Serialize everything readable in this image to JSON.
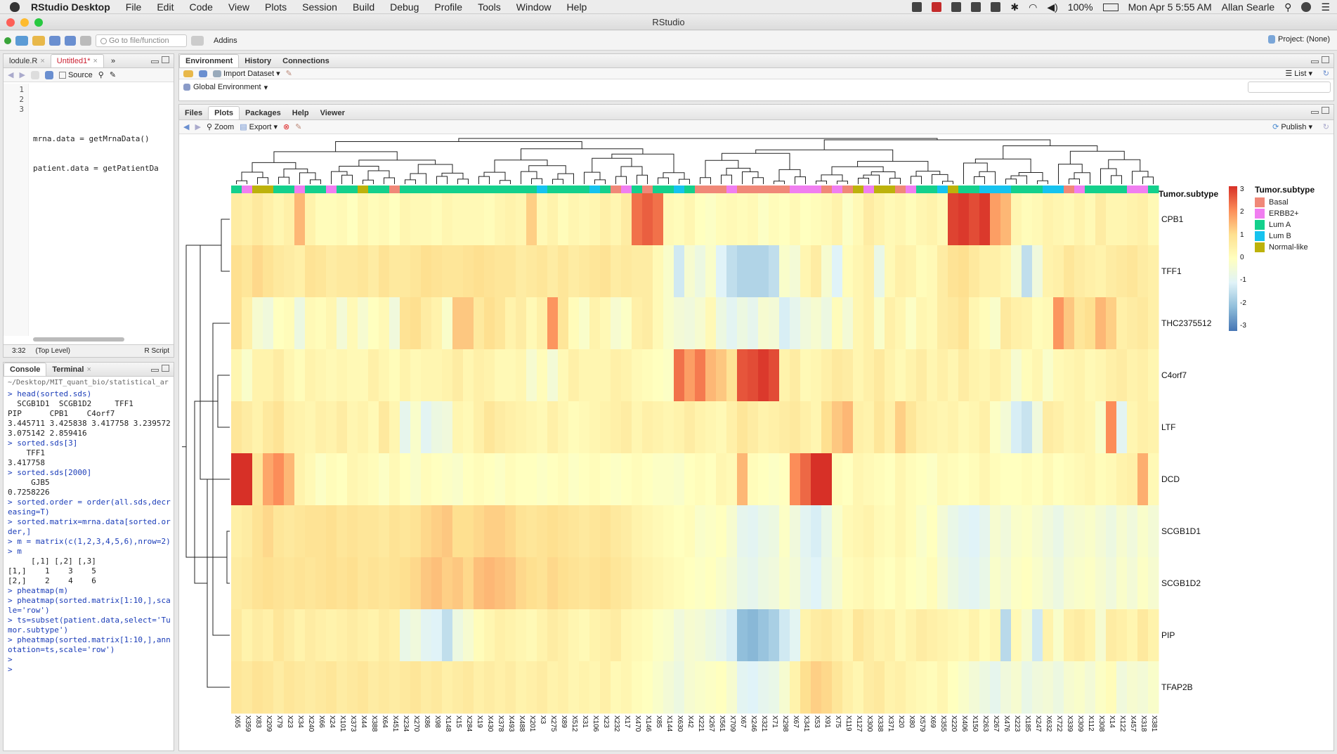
{
  "menubar": {
    "app": "RStudio Desktop",
    "items": [
      "File",
      "Edit",
      "Code",
      "View",
      "Plots",
      "Session",
      "Build",
      "Debug",
      "Profile",
      "Tools",
      "Window",
      "Help"
    ],
    "battery": "100%",
    "clock": "Mon Apr 5  5:55 AM",
    "user": "Allan Searle"
  },
  "window": {
    "title": "RStudio"
  },
  "toolbar": {
    "goto_placeholder": "Go to file/function",
    "addins": "Addins",
    "project": "Project: (None)"
  },
  "editor": {
    "tabs": [
      {
        "label": "lodule.R"
      },
      {
        "label": "Untitled1*"
      }
    ],
    "source_label": "Source",
    "line_numbers": [
      "1",
      "2",
      "3"
    ],
    "lines": [
      "",
      "mrna.data = getMrnaData()",
      "patient.data = getPatientDa"
    ],
    "status": {
      "position": "3:32",
      "scope": "(Top Level)",
      "type": "R Script"
    }
  },
  "console": {
    "tabs": [
      "Console",
      "Terminal"
    ],
    "path": "~/Desktop/MIT_quant_bio/statistical_ar",
    "lines": [
      {
        "t": "> head(sorted.sds)",
        "cmd": true
      },
      {
        "t": "  SCGB1D1  SCGB1D2     TFF1",
        "cmd": false
      },
      {
        "t": "PIP      CPB1    C4orf7",
        "cmd": false
      },
      {
        "t": "3.445711 3.425838 3.417758 3.239572 3.075142 2.859416",
        "cmd": false
      },
      {
        "t": "> sorted.sds[3]",
        "cmd": true
      },
      {
        "t": "    TFF1",
        "cmd": false
      },
      {
        "t": "3.417758",
        "cmd": false
      },
      {
        "t": "> sorted.sds[2000]",
        "cmd": true
      },
      {
        "t": "     GJB5",
        "cmd": false
      },
      {
        "t": "0.7258226",
        "cmd": false
      },
      {
        "t": "> sorted.order = order(all.sds,decreasing=T)",
        "cmd": true
      },
      {
        "t": "> sorted.matrix=mrna.data[sorted.order,]",
        "cmd": true
      },
      {
        "t": "> m = matrix(c(1,2,3,4,5,6),nrow=2)",
        "cmd": true
      },
      {
        "t": "> m",
        "cmd": true
      },
      {
        "t": "     [,1] [,2] [,3]",
        "cmd": false
      },
      {
        "t": "[1,]    1    3    5",
        "cmd": false
      },
      {
        "t": "[2,]    2    4    6",
        "cmd": false
      },
      {
        "t": "> pheatmap(m)",
        "cmd": true
      },
      {
        "t": "> pheatmap(sorted.matrix[1:10,],scale='row')",
        "cmd": true
      },
      {
        "t": "> ts=subset(patient.data,select='Tumor.subtype')",
        "cmd": true
      },
      {
        "t": "> pheatmap(sorted.matrix[1:10,],annotation=ts,scale='row')",
        "cmd": true
      },
      {
        "t": ">",
        "cmd": true
      },
      {
        "t": ">",
        "cmd": true
      }
    ]
  },
  "env": {
    "tabs": [
      "Environment",
      "History",
      "Connections"
    ],
    "import_label": "Import Dataset",
    "scope_label": "Global Environment",
    "view_label": "List"
  },
  "files": {
    "tabs": [
      "Files",
      "Plots",
      "Packages",
      "Help",
      "Viewer"
    ],
    "zoom_label": "Zoom",
    "export_label": "Export",
    "publish_label": "Publish"
  },
  "colors": {
    "basal": "#f08878",
    "erbb2": "#f07ef0",
    "luma": "#14d08c",
    "lumb": "#16c3ef",
    "normal": "#bdb20b"
  },
  "chart_data": {
    "type": "heatmap",
    "annotation_title": "Tumor.subtype",
    "legend_title": "Tumor.subtype",
    "legend": [
      "Basal",
      "ERBB2+",
      "Lum A",
      "Lum B",
      "Normal-like"
    ],
    "scale_ticks": [
      "3",
      "2",
      "1",
      "0",
      "-1",
      "-2",
      "-3"
    ],
    "scale_range": [
      -3,
      3
    ],
    "rows": [
      "CPB1",
      "TFF1",
      "THC2375512",
      "C4orf7",
      "LTF",
      "DCD",
      "SCGB1D1",
      "SCGB1D2",
      "PIP",
      "TFAP2B"
    ],
    "columns": [
      "X65",
      "X359",
      "X83",
      "X209",
      "X79",
      "X23",
      "X34",
      "X240",
      "X66",
      "X24",
      "X101",
      "X373",
      "X44",
      "X388",
      "X64",
      "X451",
      "X234",
      "X270",
      "X86",
      "X98",
      "X148",
      "X15",
      "X284",
      "X19",
      "X430",
      "X378",
      "X493",
      "X488",
      "X201",
      "X3",
      "X275",
      "X89",
      "X512",
      "X31",
      "X106",
      "X23",
      "X232",
      "X17",
      "X470",
      "X146",
      "X85",
      "X144",
      "X630",
      "X42",
      "X221",
      "X267",
      "X561",
      "X709",
      "X67",
      "X246",
      "X321",
      "X71",
      "X298",
      "X67",
      "X341",
      "X53",
      "X91",
      "X75",
      "X119",
      "X127",
      "X300",
      "X338",
      "X371",
      "X20",
      "X80",
      "X579",
      "X69",
      "X355",
      "X220",
      "X406",
      "X150",
      "X263",
      "X267",
      "X476",
      "X223",
      "X185",
      "X247",
      "X632",
      "X722",
      "X339",
      "X309",
      "X112",
      "X308",
      "X14",
      "X122",
      "X457",
      "X318",
      "X381"
    ],
    "annotation": [
      "G",
      "E",
      "N",
      "N",
      "G",
      "G",
      "E",
      "G",
      "G",
      "E",
      "G",
      "G",
      "N",
      "G",
      "G",
      "B",
      "G",
      "G",
      "G",
      "G",
      "G",
      "G",
      "G",
      "G",
      "G",
      "G",
      "G",
      "G",
      "G",
      "L",
      "G",
      "G",
      "G",
      "G",
      "L",
      "G",
      "B",
      "E",
      "G",
      "B",
      "G",
      "G",
      "L",
      "G",
      "B",
      "B",
      "B",
      "E",
      "B",
      "B",
      "B",
      "B",
      "B",
      "E",
      "E",
      "E",
      "B",
      "E",
      "B",
      "N",
      "E",
      "N",
      "N",
      "B",
      "E",
      "G",
      "G",
      "L",
      "N",
      "G",
      "G",
      "L",
      "L",
      "L",
      "G",
      "G",
      "G",
      "L",
      "L",
      "B",
      "E",
      "G",
      "G",
      "G",
      "G",
      "E",
      "E",
      "G"
    ],
    "values": [
      [
        0.6,
        0.5,
        0.7,
        0.5,
        0.3,
        0.5,
        1.5,
        0.4,
        0.1,
        0.1,
        0.2,
        0.0,
        0.3,
        0.1,
        0.2,
        0.0,
        0.3,
        0.2,
        0.2,
        0.1,
        0.3,
        0.2,
        0.2,
        0.2,
        0.1,
        0.3,
        0.4,
        0.3,
        1.2,
        0.2,
        0.4,
        0.1,
        0.3,
        0.2,
        0.3,
        0.5,
        0.3,
        0.6,
        2.3,
        2.5,
        2.3,
        0.2,
        0.1,
        0.3,
        0.0,
        -0.1,
        0.1,
        0.2,
        0.1,
        0.2,
        -0.1,
        0.1,
        0.0,
        0.2,
        0.0,
        0.1,
        0.2,
        0.4,
        -0.1,
        0.2,
        0.6,
        0.4,
        0.2,
        0.3,
        0.1,
        0.3,
        0.4,
        0.2,
        2.8,
        2.9,
        2.7,
        2.9,
        1.8,
        1.5,
        0.3,
        0.1,
        0.2,
        0.4,
        0.3,
        0.2,
        0.4,
        0.2,
        0.6,
        0.3,
        0.3,
        0.4,
        0.5,
        0.2
      ],
      [
        1.0,
        0.8,
        1.1,
        0.9,
        0.7,
        0.6,
        0.5,
        0.9,
        0.8,
        0.6,
        0.7,
        0.7,
        0.8,
        0.6,
        0.9,
        0.7,
        0.7,
        0.8,
        1.0,
        0.9,
        0.8,
        0.8,
        0.9,
        1.0,
        0.9,
        0.8,
        0.8,
        0.6,
        0.7,
        0.8,
        0.6,
        0.8,
        0.6,
        0.7,
        0.8,
        0.9,
        0.6,
        0.7,
        0.6,
        0.6,
        0.2,
        -0.2,
        -1.2,
        -0.3,
        -0.6,
        -0.2,
        -1.0,
        -1.4,
        -1.6,
        -1.6,
        -1.6,
        -1.4,
        -0.2,
        -0.4,
        0.3,
        0.6,
        -0.3,
        -1.0,
        0.1,
        0.3,
        0.5,
        -0.7,
        0.2,
        0.5,
        0.4,
        0.1,
        0.2,
        0.6,
        0.9,
        1.0,
        0.7,
        0.5,
        0.5,
        0.3,
        -0.3,
        -1.4,
        -0.5,
        0.4,
        0.5,
        0.8,
        0.6,
        0.5,
        0.4,
        0.6,
        0.7,
        0.8,
        0.6,
        0.5
      ],
      [
        1.0,
        0.5,
        -0.3,
        -0.5,
        0.0,
        0.1,
        -0.6,
        0.2,
        0.1,
        0.3,
        -0.4,
        0.2,
        -0.3,
        0.0,
        0.2,
        -0.5,
        0.9,
        1.0,
        0.6,
        0.4,
        -0.2,
        1.3,
        1.3,
        0.7,
        1.0,
        0.8,
        0.4,
        0.6,
        0.2,
        0.5,
        1.9,
        0.8,
        0.1,
        -0.2,
        0.4,
        0.2,
        -0.3,
        -0.1,
        0.5,
        0.6,
        0.2,
        -0.2,
        -0.4,
        -0.5,
        -0.3,
        0.2,
        -0.6,
        -0.9,
        -0.6,
        -0.8,
        -0.3,
        -0.4,
        -1.1,
        -0.8,
        -0.5,
        -0.3,
        -0.6,
        0.1,
        -0.4,
        0.3,
        0.5,
        -0.2,
        0.5,
        0.3,
        -0.1,
        0.3,
        0.2,
        0.6,
        0.7,
        0.9,
        0.3,
        0.1,
        -0.2,
        0.7,
        0.5,
        0.4,
        0.1,
        0.2,
        1.9,
        1.3,
        0.8,
        1.0,
        1.5,
        1.2,
        0.5,
        0.6,
        0.7,
        0.5
      ],
      [
        0.3,
        -0.2,
        0.4,
        0.4,
        0.6,
        0.3,
        0.1,
        0.4,
        0.3,
        0.2,
        0.3,
        0.2,
        0.2,
        0.5,
        0.3,
        0.1,
        0.4,
        0.2,
        0.3,
        0.3,
        0.4,
        0.6,
        0.3,
        0.5,
        0.4,
        0.2,
        0.2,
        0.3,
        -0.3,
        0.1,
        -0.4,
        0.2,
        0.5,
        0.3,
        0.3,
        0.3,
        0.5,
        0.4,
        0.2,
        0.1,
        0.0,
        -0.1,
        2.3,
        1.8,
        2.2,
        1.5,
        1.3,
        0.9,
        2.6,
        2.7,
        2.9,
        2.7,
        0.4,
        0.6,
        0.2,
        0.3,
        0.5,
        0.7,
        0.6,
        0.3,
        0.5,
        0.7,
        0.4,
        0.2,
        0.4,
        0.6,
        0.3,
        0.5,
        0.3,
        0.6,
        0.4,
        0.3,
        0.5,
        0.3,
        -0.3,
        0.1,
        0.3,
        -0.2,
        0.2,
        0.3,
        0.4,
        0.2,
        0.3,
        0.5,
        0.6,
        0.4,
        0.5,
        0.3
      ],
      [
        0.8,
        0.6,
        0.4,
        0.7,
        0.9,
        0.5,
        0.4,
        0.3,
        0.5,
        0.4,
        0.6,
        0.3,
        0.4,
        0.2,
        0.7,
        0.3,
        -0.8,
        -0.2,
        -0.9,
        -0.6,
        -0.5,
        0.3,
        0.2,
        0.5,
        0.8,
        0.6,
        0.5,
        0.4,
        0.3,
        0.2,
        0.5,
        0.3,
        0.1,
        0.2,
        0.3,
        0.4,
        0.5,
        0.6,
        0.3,
        0.5,
        0.4,
        0.3,
        0.4,
        0.6,
        0.4,
        0.3,
        0.2,
        0.5,
        0.8,
        0.6,
        0.4,
        0.5,
        0.6,
        0.7,
        0.5,
        0.3,
        1.0,
        1.3,
        1.5,
        0.5,
        0.4,
        0.8,
        0.5,
        1.2,
        0.8,
        0.5,
        0.4,
        0.3,
        0.4,
        0.2,
        0.3,
        0.5,
        -0.1,
        -0.4,
        -1.1,
        -1.3,
        -0.5,
        0.6,
        0.5,
        0.3,
        0.4,
        0.3,
        -0.2,
        2.0,
        -0.9,
        0.3,
        0.5,
        0.4
      ],
      [
        3.3,
        3.1,
        0.8,
        1.7,
        2.0,
        1.5,
        0.4,
        0.2,
        -0.1,
        0.1,
        0.0,
        0.3,
        0.2,
        0.1,
        -0.1,
        0.2,
        0.0,
        -0.2,
        0.1,
        0.0,
        -0.1,
        -0.2,
        0.0,
        0.1,
        0.0,
        -0.1,
        0.1,
        0.0,
        0.0,
        -0.1,
        0.0,
        0.1,
        -0.1,
        0.0,
        0.1,
        0.0,
        -0.1,
        0.0,
        0.1,
        0.0,
        -0.1,
        -0.1,
        -0.2,
        0.0,
        0.1,
        0.0,
        0.3,
        0.2,
        1.5,
        0.1,
        0.0,
        -0.1,
        0.0,
        2.0,
        2.4,
        3.5,
        3.4,
        0.1,
        0.0,
        0.3,
        0.2,
        0.1,
        0.0,
        0.3,
        0.1,
        0.0,
        -0.1,
        0.2,
        0.1,
        0.0,
        0.1,
        0.3,
        0.1,
        0.0,
        0.0,
        0.1,
        0.0,
        0.2,
        0.0,
        0.1,
        0.2,
        0.3,
        0.1,
        0.2,
        0.4,
        0.5,
        1.6,
        0.2
      ],
      [
        0.5,
        0.6,
        0.9,
        1.1,
        0.8,
        0.7,
        0.8,
        0.9,
        0.9,
        1.0,
        0.8,
        0.9,
        0.8,
        0.8,
        0.7,
        0.9,
        0.8,
        0.9,
        1.1,
        1.2,
        1.3,
        1.0,
        1.0,
        1.1,
        1.2,
        1.2,
        1.1,
        0.9,
        0.8,
        0.9,
        1.0,
        0.9,
        0.8,
        0.7,
        0.8,
        0.9,
        0.7,
        0.6,
        0.4,
        0.3,
        0.2,
        0.1,
        0.0,
        0.1,
        -0.2,
        -0.1,
        0.0,
        -0.3,
        -0.8,
        -0.9,
        -0.7,
        -0.6,
        -0.1,
        -0.5,
        -0.9,
        -1.1,
        -0.7,
        -0.2,
        0.2,
        0.3,
        0.4,
        0.2,
        0.1,
        0.3,
        0.1,
        -0.2,
        0.0,
        -0.4,
        -0.7,
        -0.9,
        -1.0,
        -0.8,
        -0.3,
        -0.5,
        -0.2,
        -0.1,
        -0.3,
        -0.5,
        -0.7,
        -0.4,
        -0.3,
        -0.2,
        -0.4,
        -0.6,
        -0.3,
        -0.5,
        -0.2,
        -0.4
      ],
      [
        0.6,
        0.7,
        0.9,
        1.0,
        0.9,
        0.8,
        0.9,
        0.8,
        0.9,
        1.0,
        0.9,
        1.0,
        0.8,
        0.9,
        0.8,
        0.9,
        1.0,
        1.1,
        1.3,
        1.4,
        1.2,
        1.3,
        1.1,
        1.4,
        1.5,
        1.4,
        1.3,
        1.1,
        1.0,
        0.9,
        1.1,
        1.0,
        0.9,
        0.8,
        0.9,
        1.0,
        0.8,
        0.7,
        0.5,
        0.4,
        0.3,
        0.2,
        0.1,
        0.0,
        -0.1,
        0.0,
        -0.2,
        -0.4,
        -0.7,
        -0.8,
        -0.6,
        -0.5,
        -0.2,
        -0.4,
        -0.8,
        -1.0,
        -0.6,
        -0.3,
        0.1,
        0.2,
        0.3,
        0.1,
        0.0,
        0.2,
        0.0,
        -0.1,
        0.1,
        -0.3,
        -0.6,
        -0.8,
        -0.9,
        -0.7,
        -0.2,
        -0.4,
        -0.1,
        0.0,
        -0.2,
        -0.4,
        -0.6,
        -0.3,
        -0.2,
        -0.1,
        -0.3,
        -0.5,
        -0.2,
        -0.4,
        -0.1,
        -0.3
      ],
      [
        0.7,
        0.4,
        0.6,
        0.5,
        0.8,
        0.6,
        0.4,
        0.6,
        0.5,
        0.4,
        0.5,
        0.6,
        0.5,
        0.4,
        0.6,
        0.5,
        -0.7,
        -0.5,
        -0.9,
        -1.0,
        -1.4,
        -0.6,
        -0.3,
        0.1,
        0.3,
        0.5,
        0.4,
        0.3,
        0.2,
        0.4,
        0.6,
        0.5,
        0.3,
        0.2,
        0.4,
        0.5,
        0.6,
        0.3,
        0.2,
        0.1,
        -0.1,
        -0.2,
        -0.5,
        -0.3,
        -0.4,
        -0.6,
        -0.8,
        -1.1,
        -2.0,
        -2.1,
        -1.9,
        -1.7,
        -1.2,
        -0.9,
        0.4,
        0.6,
        0.7,
        0.5,
        0.3,
        0.8,
        0.6,
        0.4,
        0.5,
        0.2,
        0.4,
        0.6,
        0.5,
        0.4,
        0.3,
        0.2,
        0.4,
        0.1,
        0.3,
        -1.5,
        0.2,
        -0.3,
        -1.2,
        0.4,
        -0.2,
        0.5,
        0.6,
        0.4,
        -0.3,
        0.6,
        0.5,
        0.3,
        0.7,
        0.4
      ],
      [
        0.8,
        0.7,
        0.9,
        0.8,
        0.6,
        0.8,
        0.7,
        0.6,
        0.7,
        0.8,
        0.6,
        0.7,
        0.8,
        0.6,
        0.7,
        0.6,
        0.7,
        0.8,
        0.6,
        0.7,
        0.5,
        0.6,
        0.7,
        0.5,
        0.6,
        0.5,
        0.6,
        0.4,
        0.5,
        0.6,
        0.4,
        0.5,
        0.3,
        0.4,
        0.3,
        0.5,
        0.2,
        0.3,
        0.1,
        0.0,
        -0.2,
        -0.4,
        -0.6,
        -0.3,
        -0.2,
        -0.1,
        0.0,
        -0.3,
        -0.9,
        -1.0,
        -0.8,
        -0.7,
        -0.3,
        0.4,
        1.0,
        1.2,
        1.1,
        0.8,
        0.5,
        0.3,
        0.6,
        0.7,
        0.4,
        0.5,
        0.3,
        0.2,
        0.1,
        0.3,
        0.0,
        -0.2,
        -0.4,
        -0.6,
        -0.8,
        -0.5,
        -0.3,
        -0.7,
        -0.5,
        -0.4,
        -0.6,
        -0.3,
        -0.2,
        -0.4,
        -0.1,
        0.1,
        -0.5,
        -0.3,
        -0.4,
        -0.2
      ]
    ]
  }
}
